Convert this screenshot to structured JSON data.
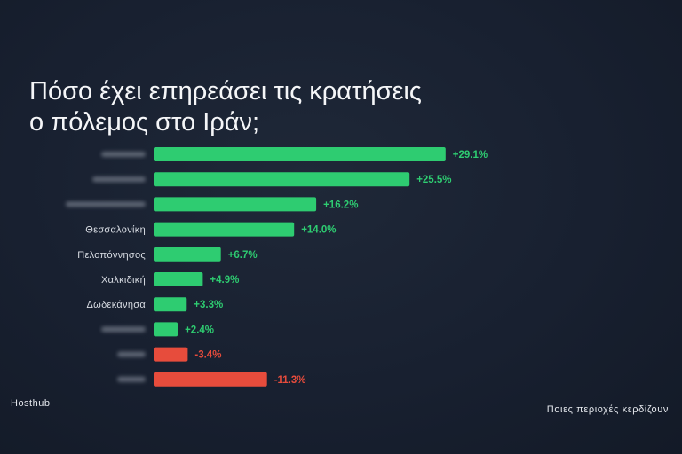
{
  "title_lines": [
    "Πόσο έχει επηρεάσει τις κρατήσεις",
    "ο πόλεμος στο Ιράν;"
  ],
  "brand": "Hosthub",
  "footer_caption": "Ποιες περιοχές κερδίζουν",
  "colors": {
    "positive": "#2ecc71",
    "negative": "#e74c3c",
    "label": "#d9dde4",
    "blurred_label": "#5d6573"
  },
  "chart_data": {
    "type": "bar",
    "orientation": "horizontal",
    "title": "Πόσο έχει επηρεάσει τις κρατήσεις ο πόλεμος στο Ιράν;",
    "categories": [
      "",
      "",
      "",
      "Θεσσαλονίκη",
      "Πελοπόννησος",
      "Χαλκιδική",
      "Δωδεκάνησα",
      "",
      "",
      ""
    ],
    "blurred_categories": [
      true,
      true,
      true,
      false,
      false,
      false,
      false,
      true,
      true,
      true
    ],
    "values": [
      29.1,
      25.5,
      16.2,
      14.0,
      6.7,
      4.9,
      3.3,
      2.4,
      -3.4,
      -11.3
    ],
    "value_labels": [
      "+29.1%",
      "+25.5%",
      "+16.2%",
      "+14.0%",
      "+6.7%",
      "+4.9%",
      "+3.3%",
      "+2.4%",
      "-3.4%",
      "-11.3%"
    ],
    "unit": "%",
    "xlabel": "",
    "ylabel": "",
    "grid": false,
    "legend": "none"
  }
}
